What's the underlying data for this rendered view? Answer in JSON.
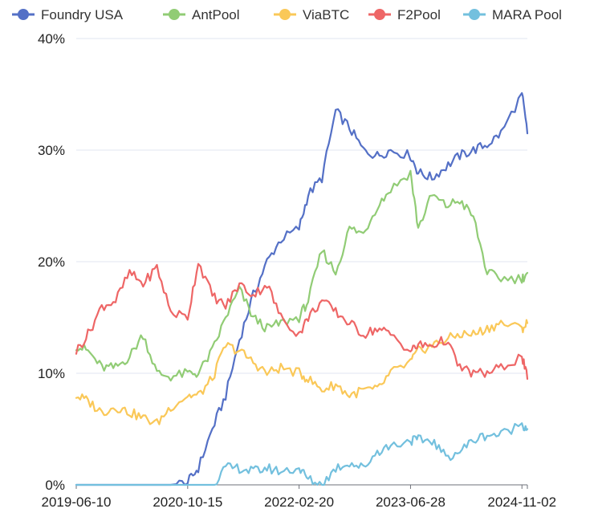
{
  "chart_data": {
    "type": "line",
    "title": "",
    "xlabel": "",
    "ylabel": "",
    "ylim": [
      0,
      40
    ],
    "y_ticks": [
      "0%",
      "10%",
      "20%",
      "30%",
      "40%"
    ],
    "x_tick_labels": [
      "2019-06-10",
      "2020-10-15",
      "2022-02-20",
      "2023-06-28",
      "2024-11-02"
    ],
    "xlim": [
      "2019-06-10",
      "2024-11-26"
    ],
    "grid": "horizontal",
    "legend_position": "top",
    "x": [
      "2019-06-10",
      "2019-08-01",
      "2019-10-01",
      "2019-12-01",
      "2020-02-01",
      "2020-04-01",
      "2020-06-01",
      "2020-08-01",
      "2020-10-15",
      "2020-12-01",
      "2021-02-01",
      "2021-04-01",
      "2021-06-01",
      "2021-08-01",
      "2021-10-01",
      "2021-12-01",
      "2022-02-20",
      "2022-04-01",
      "2022-06-01",
      "2022-08-01",
      "2022-10-01",
      "2022-12-01",
      "2023-02-01",
      "2023-04-01",
      "2023-06-28",
      "2023-08-01",
      "2023-10-01",
      "2023-12-01",
      "2024-02-01",
      "2024-04-01",
      "2024-06-01",
      "2024-08-01",
      "2024-11-02",
      "2024-11-26"
    ],
    "series": [
      {
        "name": "Foundry USA",
        "color": "#5470c6",
        "values": [
          0,
          0,
          0,
          0,
          0,
          0,
          0,
          0,
          0.2,
          1.5,
          5,
          8,
          13,
          17,
          20,
          22,
          23,
          26,
          27.5,
          33.5,
          32,
          30,
          29.5,
          30,
          29.5,
          28,
          27.5,
          28.5,
          29.5,
          30,
          30.5,
          31.5,
          35,
          31.5
        ]
      },
      {
        "name": "AntPool",
        "color": "#91cc75",
        "values": [
          12.5,
          12,
          10.5,
          10.5,
          11.5,
          13.5,
          10,
          9.7,
          10,
          10,
          12,
          15,
          17.5,
          15,
          14,
          14.5,
          15,
          16.5,
          21,
          19,
          23,
          22.5,
          25,
          26.5,
          28,
          23,
          26,
          25,
          25.5,
          24,
          19,
          18.5,
          18.5,
          19
        ]
      },
      {
        "name": "ViaBTC",
        "color": "#fac858",
        "values": [
          8,
          7.5,
          6.5,
          7,
          6.5,
          6,
          5.5,
          7,
          8,
          8,
          9.5,
          12.5,
          12,
          11,
          10,
          10.5,
          10,
          9.5,
          8.5,
          9,
          8,
          8.5,
          8.5,
          10,
          11,
          12,
          12.5,
          13,
          13.5,
          13.5,
          14,
          14.5,
          14,
          14.5
        ]
      },
      {
        "name": "F2Pool",
        "color": "#ee6666",
        "values": [
          12,
          13.5,
          16,
          16.5,
          19,
          18,
          19.5,
          15.5,
          15,
          20,
          17,
          16,
          18,
          17,
          18,
          15,
          13.5,
          15,
          16.5,
          15.5,
          14.5,
          13.5,
          14,
          13.5,
          12,
          12.5,
          12.5,
          13,
          10.5,
          10,
          10,
          10.5,
          11.5,
          9.5
        ]
      },
      {
        "name": "MARA Pool",
        "color": "#73c0de",
        "values": [
          0,
          0,
          0,
          0,
          0,
          0,
          0,
          0,
          0,
          0,
          0,
          1.5,
          1.5,
          1.2,
          1.5,
          1.2,
          1.5,
          0.5,
          0,
          1.5,
          2,
          1.5,
          3,
          3.5,
          4,
          4,
          4,
          2.5,
          3,
          4,
          4.5,
          4.5,
          5.5,
          5
        ]
      }
    ]
  }
}
